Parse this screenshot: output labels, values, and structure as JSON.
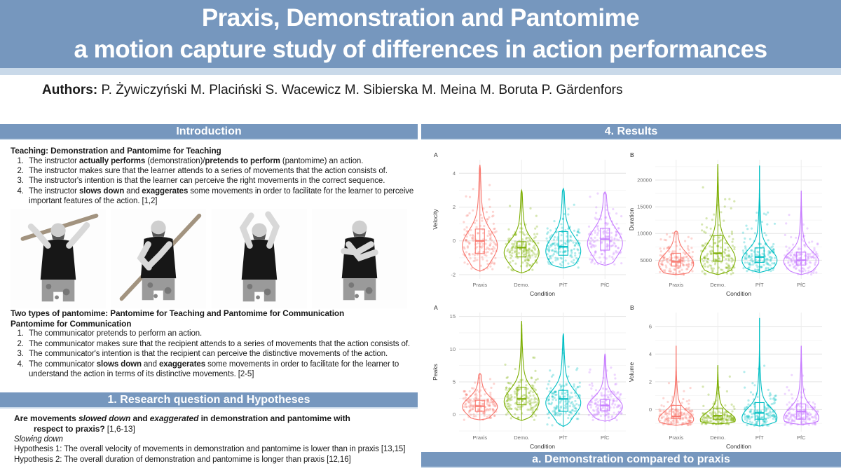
{
  "banner": {
    "title_line1": "Praxis, Demonstration and Pantomime",
    "title_line2": "a motion capture study of differences in action performances"
  },
  "authors": {
    "label": "Authors:",
    "names": "P. Żywiczyński M. Placiński S. Wacewicz M. Sibierska M. Meina M. Boruta P. Gärdenfors"
  },
  "colors": {
    "accent": "#7697BE",
    "accent_light": "#C9D9E9",
    "praxis": "#F8766D",
    "demo": "#7CAE00",
    "pft": "#00BFC4",
    "pfc": "#C77CFF"
  },
  "left": {
    "intro_header": "Introduction",
    "teaching_heading": "Teaching: Demonstration and Pantomime for Teaching",
    "teaching_items": [
      [
        [
          "n",
          "The instructor "
        ],
        [
          "b",
          "actually performs"
        ],
        [
          "n",
          " (demonstration)/"
        ],
        [
          "b",
          "pretends to perform"
        ],
        [
          "n",
          " (pantomime) an action."
        ]
      ],
      [
        [
          "n",
          "The instructor makes sure that the learner attends to a series of movements that the action consists of."
        ]
      ],
      [
        [
          "n",
          "The instructor's intention is that the learner can perceive the right movements in the correct sequence."
        ]
      ],
      [
        [
          "n",
          "The instructor "
        ],
        [
          "b",
          "slows down"
        ],
        [
          "n",
          " and "
        ],
        [
          "b",
          "exaggerates"
        ],
        [
          "n",
          " some movements in order to facilitate for the learner to perceive important features of the action. [1,2]"
        ]
      ]
    ],
    "photo_names": [
      "demonstration-stick-overhead",
      "demonstration-stick-swing",
      "pantomime-arms-raised",
      "pantomime-arms-crossed"
    ],
    "pantomime_heading1": "Two types of pantomime: Pantomime for Teaching and Pantomime for Communication",
    "pantomime_heading2": "Pantomime for Communication",
    "pantomime_items": [
      [
        [
          "n",
          "The communicator pretends to perform an action."
        ]
      ],
      [
        [
          "n",
          "The communicator makes sure that the recipient attends to a series of movements that the action consists of."
        ]
      ],
      [
        [
          "n",
          "The communicator's intention is that the recipient can perceive the distinctive movements of the action."
        ]
      ],
      [
        [
          "n",
          "The communicator "
        ],
        [
          "b",
          "slows down"
        ],
        [
          "n",
          " and "
        ],
        [
          "b",
          "exaggerates"
        ],
        [
          "n",
          " some movements in order to facilitate for the learner to understand the action in terms of its distinctive movements. [2-5]"
        ]
      ]
    ],
    "research_header": "1. Research question and Hypotheses",
    "research_question": [
      [
        "b",
        "Are movements "
      ],
      [
        "bi",
        "slowed down"
      ],
      [
        "b",
        " and "
      ],
      [
        "bi",
        "exaggerated"
      ],
      [
        "b",
        " in demonstration and pantomime with respect to praxis?"
      ],
      [
        "n",
        " [1,6-13]"
      ]
    ],
    "slowing_down": "Slowing down",
    "hypothesis1": "Hypothesis 1: The overall velocity of movements in demonstration and pantomime is lower than in praxis [13,15]",
    "hypothesis2": "Hypothesis 2: The overall duration of demonstration and pantomime is longer than praxis [12,16]"
  },
  "right": {
    "results_header": "4. Results",
    "bottom_header": "a. Demonstration compared to praxis"
  },
  "chart_data": [
    {
      "type": "violin",
      "panel": "A",
      "ylabel": "Velocity",
      "xlabel": "Condition",
      "ylim": [
        -2.25,
        4.8
      ],
      "yticks": [
        -2,
        0,
        2,
        4
      ],
      "categories": [
        "Praxis",
        "Demo.",
        "PfT",
        "PfC"
      ],
      "colors": [
        "#F8766D",
        "#7CAE00",
        "#00BFC4",
        "#C77CFF"
      ],
      "grid": true,
      "legend": "none",
      "violins": [
        {
          "min": -1.8,
          "max": 4.5,
          "q1": -0.75,
          "median": 0.0,
          "q3": 0.7,
          "mode": -0.3,
          "spread": 0.85
        },
        {
          "min": -1.9,
          "max": 3.0,
          "q1": -0.95,
          "median": -0.4,
          "q3": -0.05,
          "mode": -0.7,
          "spread": 0.7
        },
        {
          "min": -1.6,
          "max": 3.1,
          "q1": -0.85,
          "median": -0.35,
          "q3": 0.55,
          "mode": -0.6,
          "spread": 0.8
        },
        {
          "min": -1.45,
          "max": 2.9,
          "q1": -0.55,
          "median": 0.1,
          "q3": 0.75,
          "mode": -0.15,
          "spread": 0.8
        }
      ]
    },
    {
      "type": "violin",
      "panel": "B",
      "ylabel": "Duration",
      "xlabel": "Condition",
      "ylim": [
        1500,
        23800
      ],
      "yticks": [
        5000,
        10000,
        15000,
        20000
      ],
      "categories": [
        "Praxis",
        "Demo.",
        "PfT",
        "PfC"
      ],
      "colors": [
        "#F8766D",
        "#7CAE00",
        "#00BFC4",
        "#C77CFF"
      ],
      "grid": true,
      "legend": "none",
      "violins": [
        {
          "min": 2300,
          "max": 10500,
          "q1": 3900,
          "median": 4700,
          "q3": 6300,
          "mode": 4300,
          "spread": 1800
        },
        {
          "min": 2300,
          "max": 23000,
          "q1": 4800,
          "median": 6300,
          "q3": 9600,
          "mode": 5200,
          "spread": 2500
        },
        {
          "min": 2700,
          "max": 22700,
          "q1": 4600,
          "median": 5600,
          "q3": 7300,
          "mode": 5000,
          "spread": 1900
        },
        {
          "min": 2300,
          "max": 18000,
          "q1": 4100,
          "median": 5000,
          "q3": 6500,
          "mode": 4800,
          "spread": 1700
        }
      ]
    },
    {
      "type": "violin",
      "panel": "A",
      "ylabel": "Peaks",
      "xlabel": "Condition",
      "ylim": [
        -2.6,
        15.6
      ],
      "yticks": [
        0,
        5,
        10,
        15
      ],
      "categories": [
        "Praxis",
        "Demo.",
        "PfT",
        "PfC"
      ],
      "colors": [
        "#F8766D",
        "#7CAE00",
        "#00BFC4",
        "#C77CFF"
      ],
      "grid": true,
      "legend": "none",
      "violins": [
        {
          "min": -0.8,
          "max": 6.3,
          "q1": 0.5,
          "median": 1.3,
          "q3": 2.2,
          "mode": 1.2,
          "spread": 1.3
        },
        {
          "min": -0.9,
          "max": 14.3,
          "q1": 1.5,
          "median": 2.4,
          "q3": 4.2,
          "mode": 2.0,
          "spread": 1.8
        },
        {
          "min": -1.8,
          "max": 12.4,
          "q1": 0.5,
          "median": 2.4,
          "q3": 3.7,
          "mode": 1.8,
          "spread": 1.8
        },
        {
          "min": -1.0,
          "max": 9.3,
          "q1": 0.6,
          "median": 1.4,
          "q3": 2.3,
          "mode": 1.2,
          "spread": 1.4
        }
      ]
    },
    {
      "type": "violin",
      "panel": "B",
      "ylabel": "Volume",
      "xlabel": "Condition",
      "ylim": [
        -1.6,
        7.0
      ],
      "yticks": [
        0,
        2,
        4,
        6
      ],
      "categories": [
        "Praxis",
        "Demo.",
        "PfT",
        "PfC"
      ],
      "colors": [
        "#F8766D",
        "#7CAE00",
        "#00BFC4",
        "#C77CFF"
      ],
      "grid": true,
      "legend": "none",
      "violins": [
        {
          "min": -1.15,
          "max": 4.6,
          "q1": -0.65,
          "median": -0.5,
          "q3": 0.3,
          "mode": -0.7,
          "spread": 0.55
        },
        {
          "min": -1.05,
          "max": 3.2,
          "q1": -0.7,
          "median": -0.45,
          "q3": 0.1,
          "mode": -0.75,
          "spread": 0.5
        },
        {
          "min": -1.2,
          "max": 6.6,
          "q1": -0.7,
          "median": -0.25,
          "q3": 0.5,
          "mode": -0.6,
          "spread": 0.7
        },
        {
          "min": -1.1,
          "max": 4.6,
          "q1": -0.7,
          "median": -0.15,
          "q3": 0.4,
          "mode": -0.6,
          "spread": 0.7
        }
      ]
    }
  ]
}
